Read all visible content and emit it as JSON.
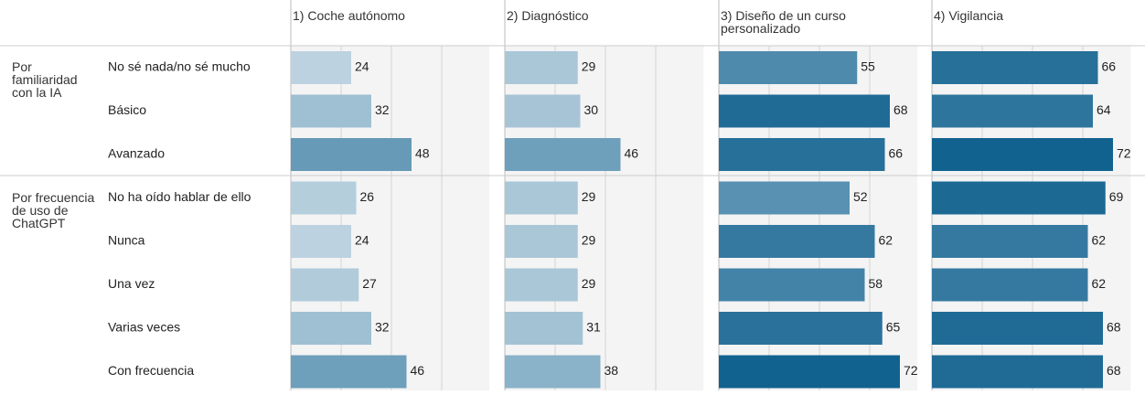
{
  "chart_data": {
    "type": "bar",
    "orientation": "horizontal",
    "groups": [
      {
        "name": "Por familiaridad con la IA",
        "categories": [
          "No sé nada/no sé mucho",
          "Básico",
          "Avanzado"
        ]
      },
      {
        "name": "Por frecuencia de uso de ChatGPT",
        "categories": [
          "No ha oído hablar de ello",
          "Nunca",
          "Una vez",
          "Varias veces",
          "Con frecuencia"
        ]
      }
    ],
    "series": [
      {
        "name": "1) Coche autónomo",
        "values": [
          24,
          32,
          48,
          26,
          24,
          27,
          32,
          46
        ]
      },
      {
        "name": "2) Diagnóstico",
        "values": [
          29,
          30,
          46,
          29,
          29,
          29,
          31,
          38
        ]
      },
      {
        "name": "3) Diseño de un curso personalizado",
        "values": [
          55,
          68,
          66,
          52,
          62,
          58,
          65,
          72
        ]
      },
      {
        "name": "4) Vigilancia",
        "values": [
          66,
          64,
          72,
          69,
          62,
          62,
          68,
          68
        ]
      }
    ],
    "xlim": [
      0,
      79
    ],
    "xticks": [
      0,
      20,
      40,
      60
    ],
    "grid": true,
    "color_scale": {
      "domain": [
        22,
        72
      ],
      "range": [
        "#c3d7e3",
        "#11628f"
      ]
    }
  }
}
